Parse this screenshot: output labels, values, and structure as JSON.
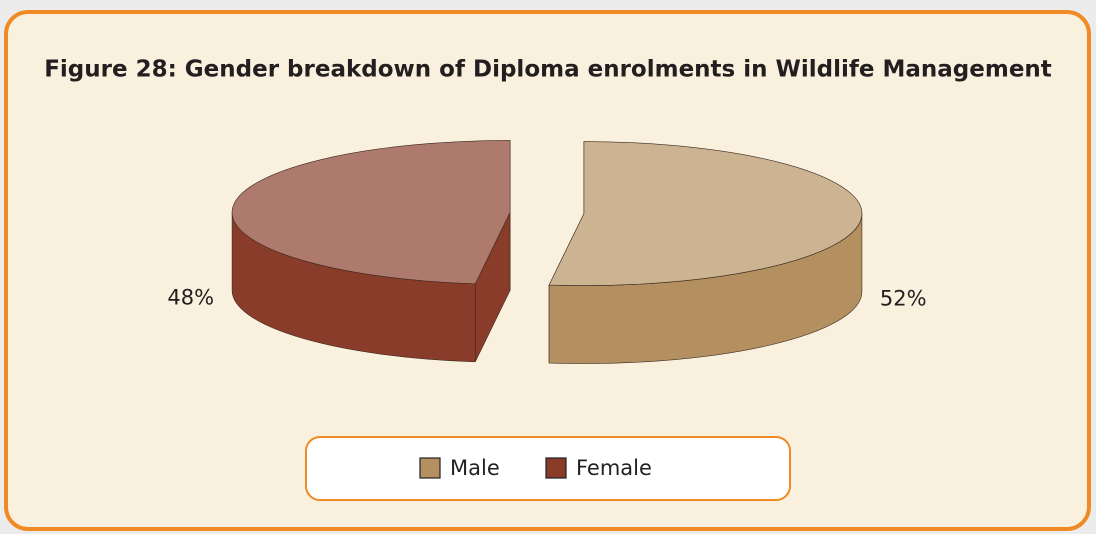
{
  "chart_data": {
    "type": "pie3d",
    "title": "Figure 28: Gender breakdown of Diploma enrolments in Wildlife Management",
    "categories": [
      "Male",
      "Female"
    ],
    "values": [
      52,
      48
    ],
    "value_labels": [
      "52%",
      "48%"
    ],
    "colors": [
      "#b48f5f",
      "#8a3c2a"
    ]
  }
}
